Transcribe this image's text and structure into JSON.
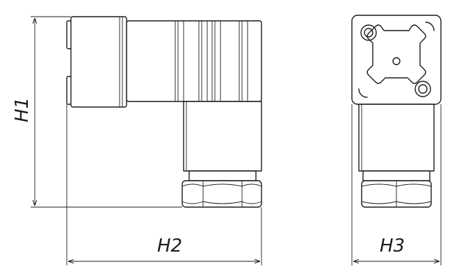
{
  "dimensions": {
    "height_label": "H1",
    "width_label": "H2",
    "depth_label": "H3"
  },
  "colors": {
    "stroke": "#1a1a1a",
    "background": "#ffffff"
  }
}
